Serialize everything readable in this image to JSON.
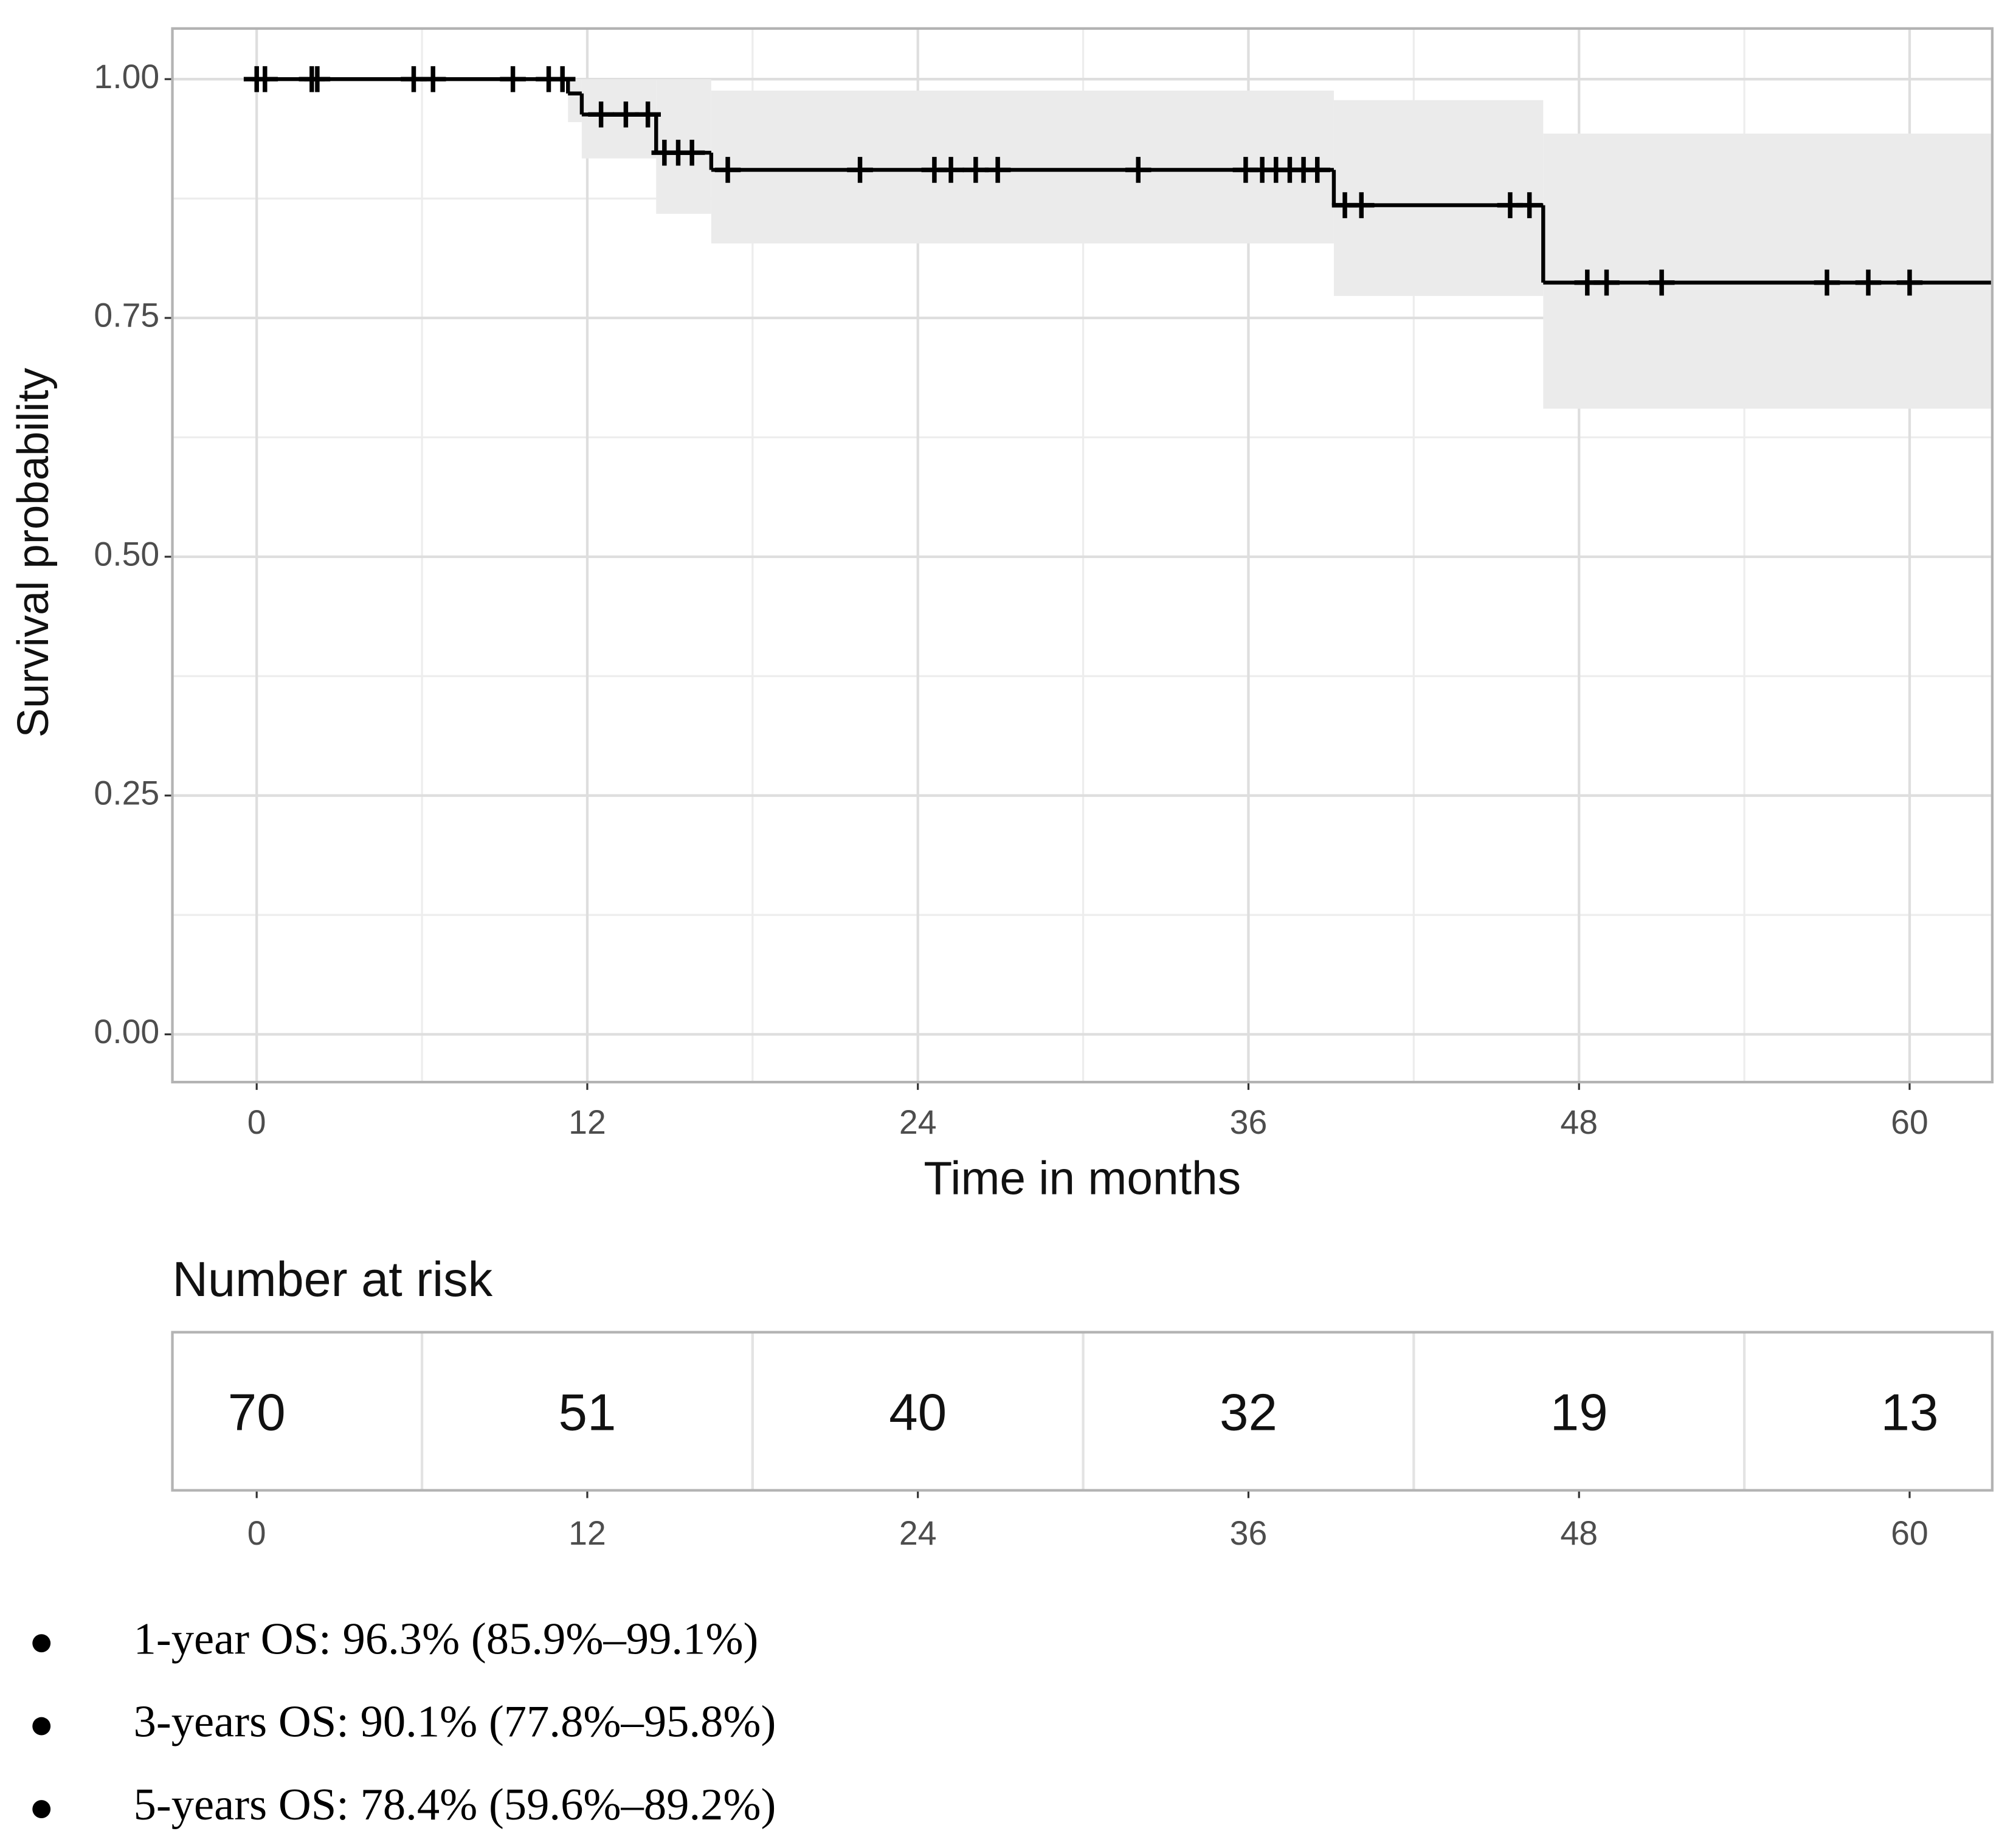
{
  "chart_data": [
    {
      "type": "step",
      "xlabel": "Time in months",
      "ylabel": "Survival probability",
      "x": [
        0,
        11.3,
        11.8,
        14.5,
        16.5,
        39.1,
        46.7
      ],
      "values": [
        1,
        0.985,
        0.963,
        0.923,
        0.905,
        0.868,
        0.787
      ],
      "ci_lower": [
        1,
        0.955,
        0.917,
        0.859,
        0.828,
        0.773,
        0.655
      ],
      "ci_upper": [
        1,
        1,
        1,
        1,
        0.988,
        0.978,
        0.943
      ],
      "censor_x": [
        0,
        0.3,
        2,
        2.2,
        5.7,
        6.4,
        9.3,
        10.6,
        11.1,
        12.5,
        13.4,
        14.2,
        14.8,
        15.3,
        15.8,
        17.1,
        21.9,
        24.6,
        25.2,
        26.1,
        26.9,
        32,
        35.9,
        36.5,
        37,
        37.5,
        38,
        38.5,
        39.5,
        40.1,
        45.5,
        46.2,
        48.3,
        49,
        51,
        57,
        58.5,
        60
      ],
      "censor_values": [
        1,
        1,
        1,
        1,
        1,
        1,
        1,
        1,
        1,
        0.963,
        0.963,
        0.963,
        0.923,
        0.923,
        0.923,
        0.905,
        0.905,
        0.905,
        0.905,
        0.905,
        0.905,
        0.905,
        0.905,
        0.905,
        0.905,
        0.905,
        0.905,
        0.905,
        0.868,
        0.868,
        0.868,
        0.868,
        0.787,
        0.787,
        0.787,
        0.787,
        0.787,
        0.787
      ],
      "color": "#000000",
      "ci_color": "#ebebeb",
      "xlim": [
        -3.06,
        63
      ],
      "ylim": [
        -0.05,
        1.053
      ],
      "xticks": [
        0,
        12,
        24,
        36,
        48,
        60
      ],
      "yticks": [
        {
          "value": 0,
          "label": "0.00"
        },
        {
          "value": 0.25,
          "label": "0.25"
        },
        {
          "value": 0.5,
          "label": "0.50"
        },
        {
          "value": 0.75,
          "label": "0.75"
        },
        {
          "value": 1,
          "label": "1.00"
        }
      ],
      "grid": true
    },
    {
      "type": "risk_table",
      "title": "Number at risk",
      "x": [
        0,
        12,
        24,
        36,
        48,
        60
      ],
      "values": [
        70,
        51,
        40,
        32,
        19,
        13
      ],
      "xlim": [
        -3.06,
        63
      ],
      "xticks": [
        0,
        12,
        24,
        36,
        48,
        60
      ],
      "grid": true
    }
  ],
  "bullets": [
    "1-year OS: 96.3% (85.9%–99.1%)",
    "3-years OS: 90.1% (77.8%–95.8%)",
    "5-years OS: 78.4% (59.6%–89.2%)"
  ]
}
